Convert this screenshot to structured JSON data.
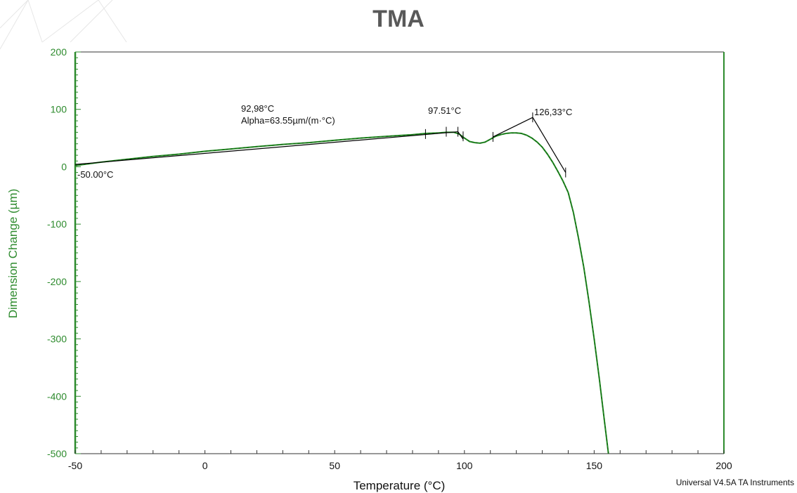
{
  "title": "TMA",
  "footer": "Universal V4.5A TA Instruments",
  "colors": {
    "curve": "#1f8a1f",
    "axis_y": "#2e8b2e",
    "annotation": "#000000",
    "title": "#595959"
  },
  "chart_data": {
    "type": "line",
    "title": "TMA",
    "xlabel": "Temperature (°C)",
    "ylabel": "Dimension Change (µm)",
    "xlim": [
      -50,
      200
    ],
    "ylim": [
      -500,
      200
    ],
    "x_ticks": [
      -50,
      0,
      50,
      100,
      150,
      200
    ],
    "y_ticks": [
      200,
      100,
      0,
      -100,
      -200,
      -300,
      -400,
      -500
    ],
    "grid": false,
    "series": [
      {
        "x": [
          -50,
          -40,
          -30,
          -20,
          -10,
          0,
          10,
          20,
          30,
          40,
          50,
          60,
          70,
          80,
          85,
          90,
          93,
          96,
          98,
          100,
          102,
          104,
          106,
          108,
          110,
          112,
          114,
          116,
          118,
          120,
          122,
          124,
          126,
          128,
          130,
          132,
          134,
          136,
          138,
          140,
          142,
          144,
          146,
          148,
          150,
          152,
          154,
          155.5
        ],
        "y": [
          2,
          8,
          13,
          18,
          22,
          27,
          31,
          35,
          39,
          42,
          46,
          50,
          53,
          56,
          58,
          59,
          60,
          60,
          57,
          50,
          44,
          42,
          41,
          43,
          48,
          53,
          56,
          58,
          59,
          59,
          58,
          55,
          50,
          43,
          34,
          22,
          8,
          -8,
          -25,
          -45,
          -80,
          -125,
          -175,
          -235,
          -300,
          -370,
          -445,
          -500
        ]
      }
    ],
    "annotations": [
      {
        "id": "onset",
        "text": "-50.00°C",
        "x": -50,
        "y": 2
      },
      {
        "id": "alpha_temp",
        "text": "92,98°C"
      },
      {
        "id": "alpha_value",
        "text": "Alpha=63.55µm/(m·°C)"
      },
      {
        "id": "tg1",
        "text": "97.51°C",
        "x": 97.51,
        "y": 61
      },
      {
        "id": "tg2",
        "text": "126,33°C",
        "x": 126.33,
        "y": 86
      }
    ],
    "tangent_lines": [
      {
        "x": [
          -50,
          97.51
        ],
        "y": [
          4,
          61
        ]
      },
      {
        "x": [
          97.51,
          99.5
        ],
        "y": [
          61,
          48
        ]
      },
      {
        "x": [
          111,
          126.33
        ],
        "y": [
          52,
          86
        ]
      },
      {
        "x": [
          126.33,
          139
        ],
        "y": [
          86,
          -10
        ]
      }
    ],
    "tick_marks": [
      {
        "x": 85,
        "y": 57
      },
      {
        "x": 93,
        "y": 61
      },
      {
        "x": 97.5,
        "y": 61
      },
      {
        "x": 99.5,
        "y": 53
      },
      {
        "x": 111,
        "y": 52
      },
      {
        "x": 126.3,
        "y": 86
      },
      {
        "x": 139,
        "y": -10
      }
    ]
  }
}
